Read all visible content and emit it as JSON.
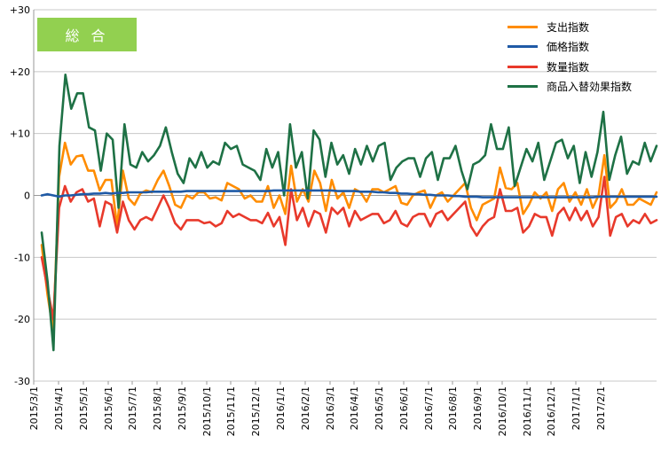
{
  "badge": {
    "label": "総 合",
    "color": "#92d050"
  },
  "chart_data": {
    "type": "line",
    "title": "",
    "xlabel": "",
    "ylabel": "",
    "ylim": [
      -30,
      30
    ],
    "yticks": [
      30,
      20,
      10,
      0,
      -10,
      -20,
      -30
    ],
    "ytick_labels": [
      "+30",
      "+20",
      "+10",
      "0",
      "-10",
      "-20",
      "-30"
    ],
    "grid": "horizontal",
    "legend_position": "top-right",
    "x_tick_labels": [
      "2015/3/1",
      "2015/4/1",
      "2015/5/1",
      "2015/6/1",
      "2015/7/1",
      "2015/8/1",
      "2015/9/1",
      "2015/10/1",
      "2015/11/1",
      "2015/12/1",
      "2016/1/1",
      "2016/2/1",
      "2016/3/1",
      "2016/4/1",
      "2016/5/1",
      "2016/6/1",
      "2016/7/1",
      "2016/8/1",
      "2016/9/1",
      "2016/10/1",
      "2016/11/1",
      "2016/12/1",
      "2017/1/1",
      "2017/2/1"
    ],
    "series": [
      {
        "name": "支出指数",
        "color": "#ff8c00",
        "values": [
          -8,
          -16,
          -22,
          3,
          8.5,
          5,
          6.3,
          6.5,
          4,
          4,
          0.8,
          2.5,
          2.5,
          -5,
          4,
          -0.5,
          -1.5,
          0.3,
          0.8,
          0.5,
          2.5,
          4,
          1.5,
          -1.5,
          -2,
          0,
          -0.5,
          0.5,
          0.5,
          -0.5,
          -0.3,
          -0.8,
          2,
          1.5,
          1,
          -0.5,
          0,
          -1,
          -1,
          1.5,
          -2,
          0,
          -3,
          4.8,
          -1,
          1,
          -1,
          4,
          2,
          -2.5,
          2.5,
          -0.5,
          0.5,
          -2,
          1,
          0.5,
          -1,
          1,
          1,
          0.5,
          1,
          1.5,
          -1.2,
          -1.5,
          0,
          0.5,
          0.8,
          -2,
          0,
          0.5,
          -1,
          0,
          1,
          2,
          -2,
          -4,
          -1.5,
          -1,
          -0.5,
          4.5,
          1.2,
          1,
          2,
          -3,
          -1.5,
          0.5,
          -0.5,
          0.5,
          -2.5,
          1,
          2,
          -1,
          0.5,
          -1.5,
          1,
          -2,
          0,
          6.5,
          -2,
          -1,
          1,
          -1.5,
          -1.5,
          -0.5,
          -1,
          -1.5,
          0.5
        ]
      },
      {
        "name": "価格指数",
        "color": "#1f5aa6",
        "values": [
          0,
          0.2,
          0,
          -0.2,
          0,
          0,
          0.1,
          0.2,
          0.2,
          0.3,
          0.3,
          0.4,
          0.3,
          0.4,
          0.4,
          0.5,
          0.5,
          0.5,
          0.5,
          0.6,
          0.6,
          0.6,
          0.6,
          0.6,
          0.6,
          0.7,
          0.7,
          0.7,
          0.7,
          0.7,
          0.7,
          0.7,
          0.7,
          0.7,
          0.7,
          0.7,
          0.7,
          0.7,
          0.7,
          0.7,
          0.8,
          0.8,
          0.8,
          0.8,
          0.8,
          0.8,
          0.8,
          0.8,
          0.8,
          0.8,
          0.8,
          0.7,
          0.7,
          0.7,
          0.7,
          0.6,
          0.6,
          0.6,
          0.5,
          0.5,
          0.4,
          0.4,
          0.3,
          0.3,
          0.2,
          0.2,
          0.1,
          0.1,
          0,
          0,
          0,
          -0.1,
          -0.1,
          -0.2,
          -0.2,
          -0.2,
          -0.3,
          -0.3,
          -0.3,
          -0.3,
          -0.3,
          -0.3,
          -0.3,
          -0.3,
          -0.3,
          -0.3,
          -0.3,
          -0.3,
          -0.3,
          -0.3,
          -0.3,
          -0.3,
          -0.3,
          -0.3,
          -0.3,
          -0.3,
          -0.2,
          -0.2,
          -0.2,
          -0.2,
          -0.2,
          -0.2,
          -0.2,
          -0.2,
          -0.2,
          -0.2,
          -0.2
        ]
      },
      {
        "name": "数量指数",
        "color": "#e8392b",
        "values": [
          -10,
          -15,
          -20,
          -2,
          1.5,
          -1,
          0.5,
          1,
          -1,
          -0.5,
          -5,
          -1,
          -1.5,
          -6,
          -1,
          -4,
          -5.5,
          -4,
          -3.5,
          -4,
          -2,
          0,
          -2,
          -4.5,
          -5.5,
          -4,
          -4,
          -4,
          -4.5,
          -4.3,
          -5,
          -4.5,
          -2.5,
          -3.5,
          -3,
          -3.5,
          -4,
          -4,
          -4.5,
          -2.8,
          -5,
          -3.5,
          -8,
          1,
          -4,
          -2,
          -5,
          -2.5,
          -3,
          -6,
          -2,
          -3,
          -2,
          -5,
          -2.5,
          -4,
          -3.5,
          -3,
          -3,
          -4.5,
          -4,
          -2.5,
          -4.5,
          -5,
          -3.5,
          -3,
          -3,
          -5,
          -3,
          -2.5,
          -4,
          -3,
          -2,
          -1,
          -5,
          -6.5,
          -5,
          -4,
          -3.5,
          1,
          -2.5,
          -2.5,
          -2,
          -6,
          -5,
          -3,
          -3.5,
          -3.5,
          -6.5,
          -3,
          -2,
          -4,
          -2,
          -4,
          -2.5,
          -5,
          -3.5,
          3,
          -6.5,
          -3.5,
          -3,
          -5,
          -4,
          -4.5,
          -3,
          -4.5,
          -4
        ]
      },
      {
        "name": "商品入替効果指数",
        "color": "#1e7145",
        "values": [
          -6,
          -14,
          -25,
          8,
          19.5,
          14,
          16.5,
          16.5,
          11,
          10.5,
          4,
          10,
          9,
          -2,
          11.5,
          5,
          4.5,
          7,
          5.5,
          6.5,
          8,
          11,
          7,
          3.5,
          2,
          6,
          4.5,
          7,
          4.5,
          5.5,
          5,
          8.5,
          7.5,
          8,
          5,
          4.5,
          4,
          2.5,
          7.5,
          4.5,
          7,
          0,
          11.5,
          4.5,
          7,
          -0.5,
          10.5,
          9,
          3,
          8.5,
          5,
          6.5,
          3.5,
          7.5,
          5,
          8,
          5.5,
          8,
          8.5,
          2.5,
          4.5,
          5.5,
          6,
          6,
          3,
          6,
          7,
          2.5,
          6,
          6,
          8,
          4,
          1,
          5,
          5.5,
          6.5,
          11.5,
          7.5,
          7.5,
          11,
          1.5,
          4.5,
          7.5,
          5.5,
          8.5,
          2.5,
          5.5,
          8.5,
          9,
          6,
          8,
          2,
          7,
          3,
          7,
          13.5,
          2.5,
          6.5,
          9.5,
          3.5,
          5.5,
          5,
          8.5,
          5.5,
          8
        ]
      }
    ]
  }
}
